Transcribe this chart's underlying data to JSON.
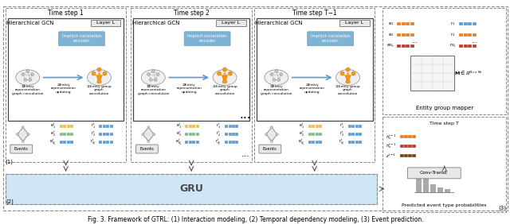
{
  "title": "Fig. 3. Framework of GTRL: (1) Interaction modeling, (2) Temporal dependency modeling, (3) Event prediction.",
  "title_fontsize": 6.5,
  "bg_color": "#ffffff",
  "timestep_labels": [
    "Time step 1",
    "Time step 2",
    "Time step T−1"
  ],
  "gcn_label": "Hierarchical GCN",
  "layer_label": "Layer L",
  "gru_label": "GRU",
  "entity_group_mapper_label": "Entity group mapper",
  "predicted_label": "Predicted event type probabilities",
  "conv_transe_label": "Conv-TransE",
  "timestep_t_label": "Time step T",
  "label1": "(1)",
  "label2": "(2)",
  "label3": "(3)",
  "colors": {
    "light_blue_bg": "#d6eaf8",
    "gru_blue": "#aed6f1",
    "border_dark": "#555555",
    "border_light": "#aaaaaa",
    "orange": "#f0a500",
    "green": "#7dba84",
    "blue_emb": "#5b9bd5",
    "red_emb": "#c0392b",
    "orange_emb": "#e67e22",
    "brown_emb": "#784212",
    "gray_circle": "#bdc3c7",
    "implicit_bg": "#7fb3d3",
    "white": "#ffffff",
    "yellow_emb": "#f0c040",
    "light_green": "#82b366"
  }
}
